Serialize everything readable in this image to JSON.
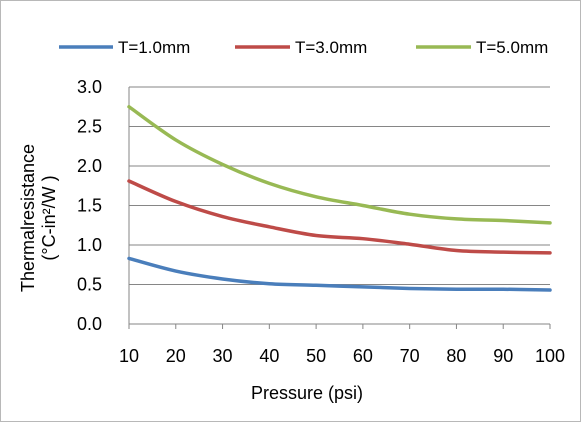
{
  "chart_data": {
    "type": "line",
    "title": "",
    "xlabel": "Pressure (psi)",
    "ylabel_line1": "Thermalresistance",
    "ylabel_line2": "(°C-in²/W )",
    "x": [
      10,
      20,
      30,
      40,
      50,
      60,
      70,
      80,
      90,
      100
    ],
    "xlim": [
      10,
      100
    ],
    "ylim": [
      0.0,
      3.0
    ],
    "x_ticks": [
      "10",
      "20",
      "30",
      "40",
      "50",
      "60",
      "70",
      "80",
      "90",
      "100"
    ],
    "y_ticks": [
      "0.0",
      "0.5",
      "1.0",
      "1.5",
      "2.0",
      "2.5",
      "3.0"
    ],
    "y_tick_values": [
      0.0,
      0.5,
      1.0,
      1.5,
      2.0,
      2.5,
      3.0
    ],
    "grid": "horizontal",
    "legend_position": "top",
    "series": [
      {
        "name": "T=1.0mm",
        "color": "#4a7ebb",
        "values": [
          0.83,
          0.67,
          0.57,
          0.51,
          0.49,
          0.47,
          0.45,
          0.44,
          0.44,
          0.43
        ]
      },
      {
        "name": "T=3.0mm",
        "color": "#be4b48",
        "values": [
          1.81,
          1.55,
          1.36,
          1.23,
          1.12,
          1.08,
          1.01,
          0.93,
          0.91,
          0.9
        ]
      },
      {
        "name": "T=5.0mm",
        "color": "#98b954",
        "values": [
          2.75,
          2.33,
          2.02,
          1.78,
          1.61,
          1.5,
          1.39,
          1.33,
          1.31,
          1.28
        ]
      }
    ]
  }
}
